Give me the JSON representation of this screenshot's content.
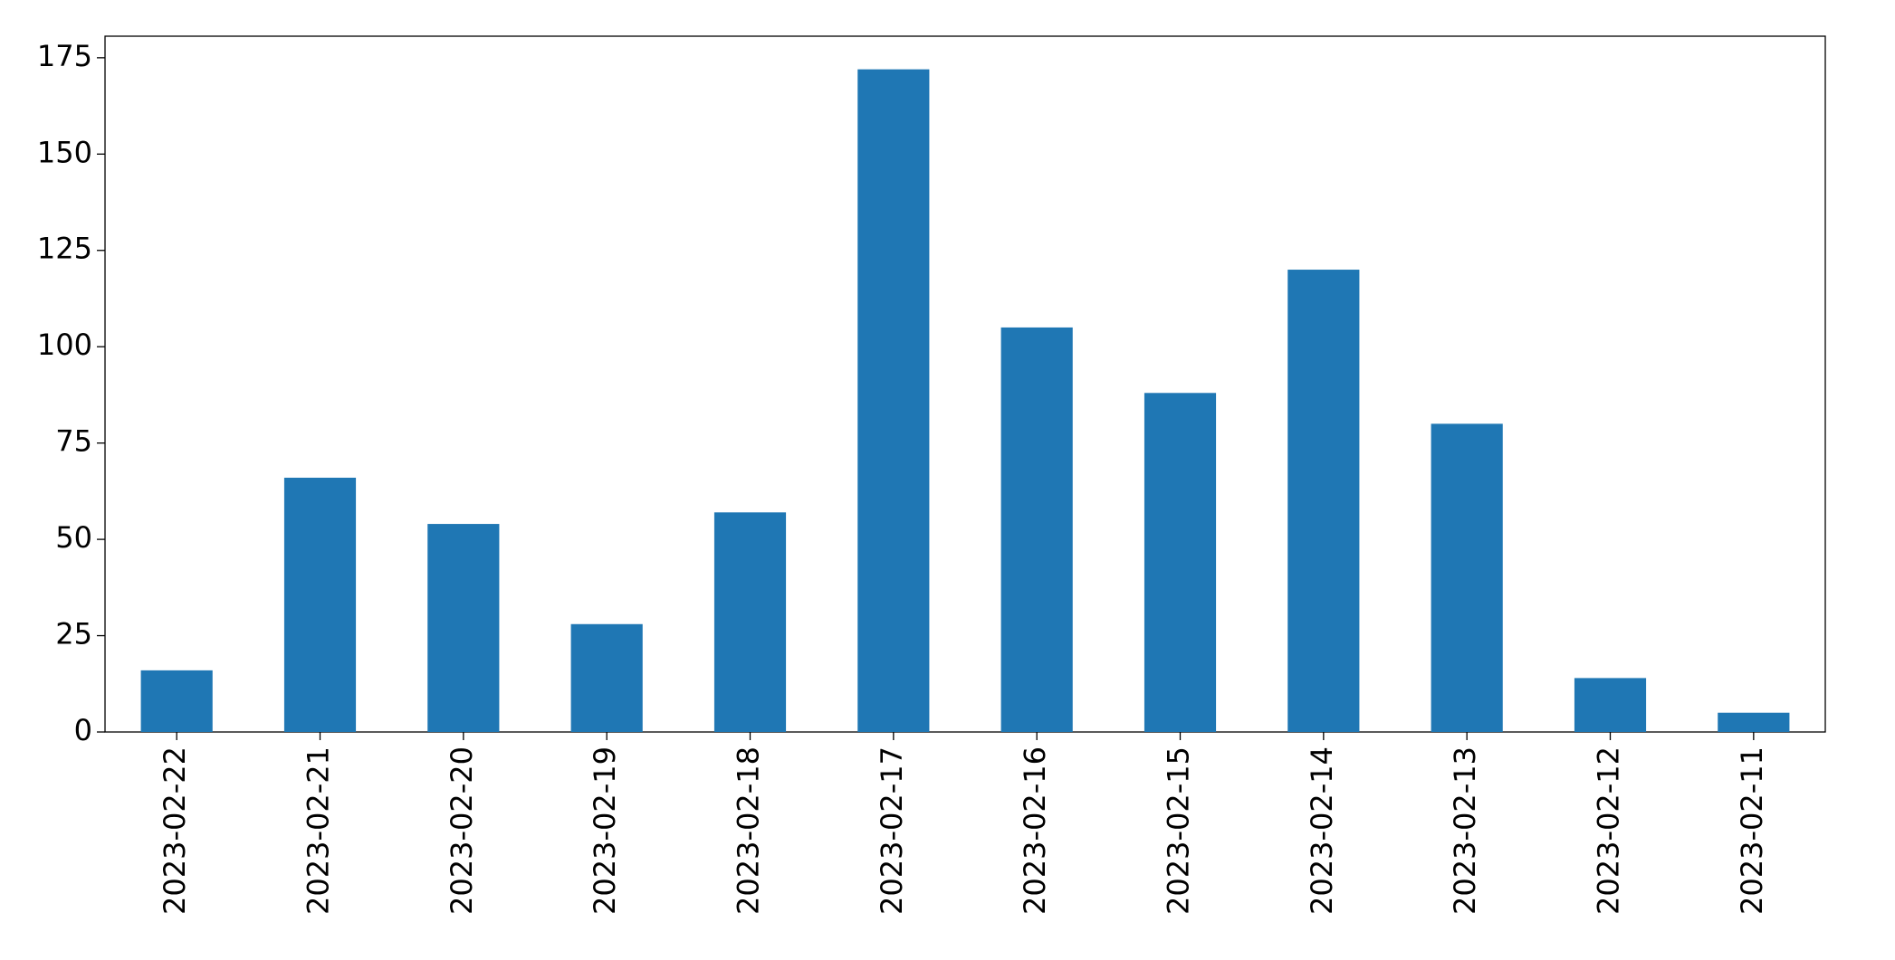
{
  "chart_data": {
    "type": "bar",
    "categories": [
      "2023-02-22",
      "2023-02-21",
      "2023-02-20",
      "2023-02-19",
      "2023-02-18",
      "2023-02-17",
      "2023-02-16",
      "2023-02-15",
      "2023-02-14",
      "2023-02-13",
      "2023-02-12",
      "2023-02-11"
    ],
    "values": [
      16,
      66,
      54,
      28,
      57,
      172,
      105,
      88,
      120,
      80,
      14,
      5
    ],
    "color": "#1f77b4",
    "ylim": [
      0,
      180.6
    ],
    "yticks": [
      0,
      25,
      50,
      75,
      100,
      125,
      150,
      175
    ],
    "grid": false
  }
}
